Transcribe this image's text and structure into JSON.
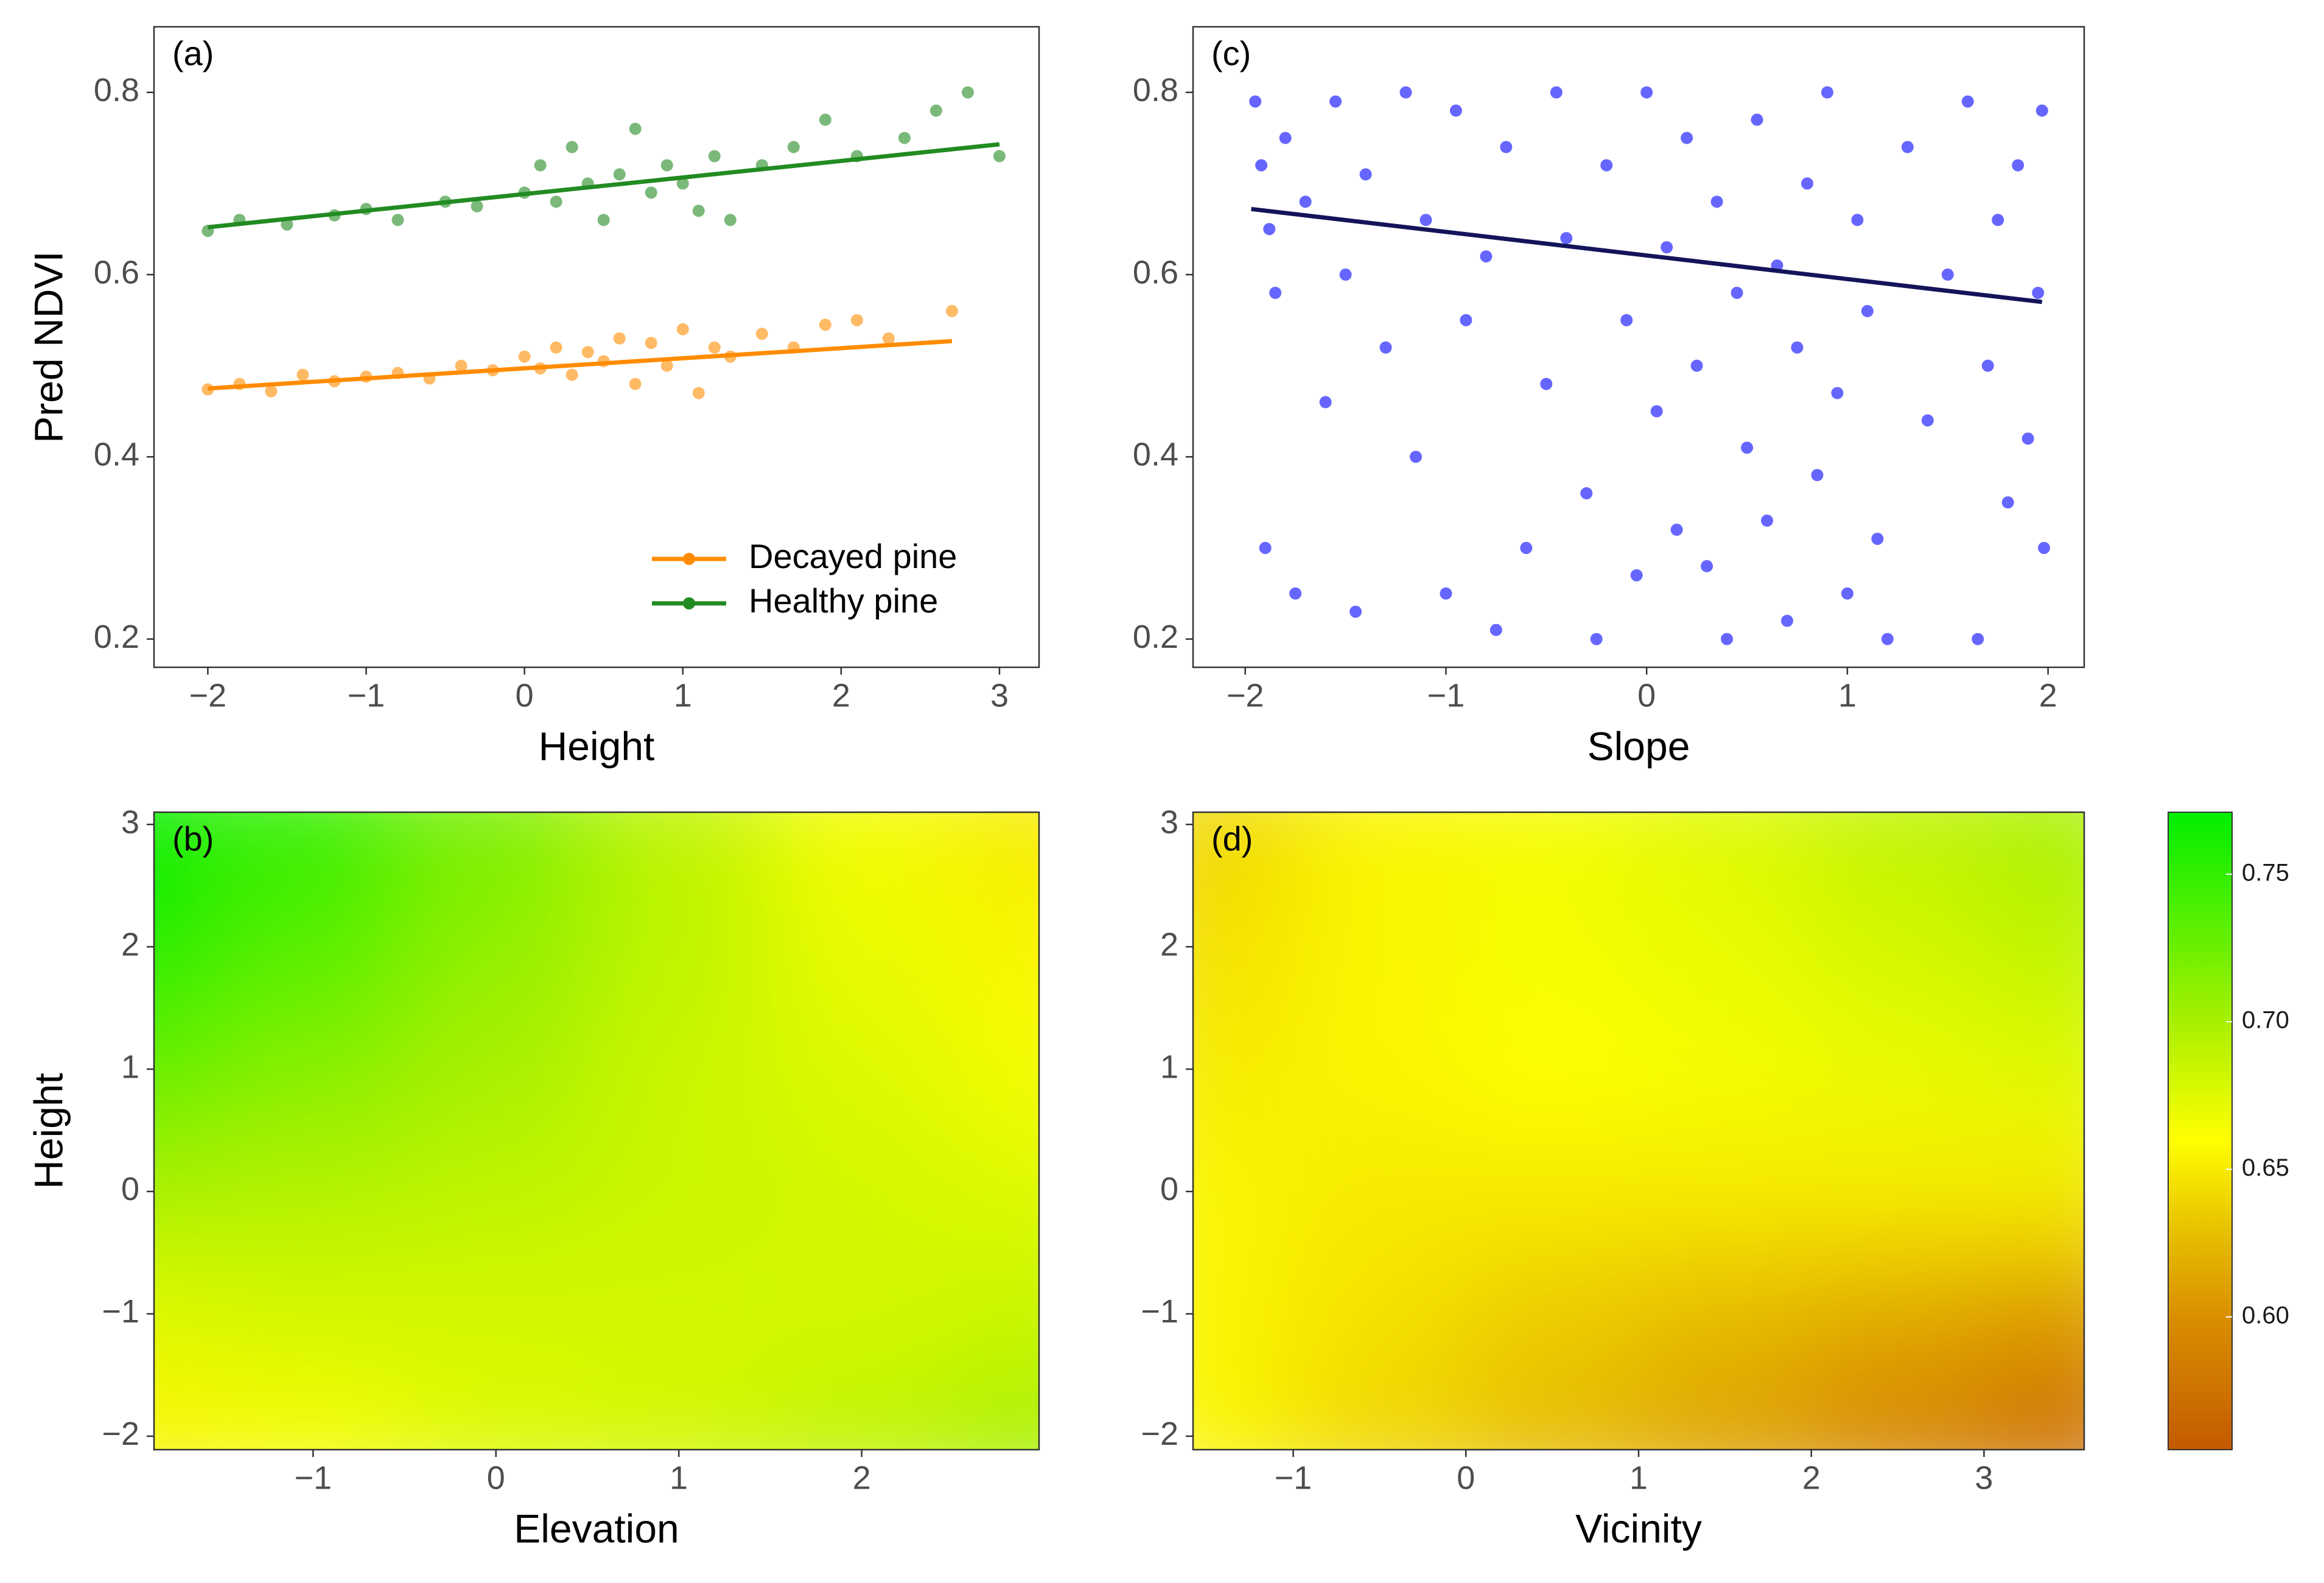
{
  "chart_data": [
    {
      "type": "scatter",
      "panel_label": "(a)",
      "x_label": "Height",
      "y_label": "Pred NDVI",
      "xlim": [
        -2.34,
        3.25
      ],
      "ylim": [
        0.169,
        0.872
      ],
      "xticks": [
        {
          "value": -2,
          "label": "−2"
        },
        {
          "value": -1,
          "label": "−1"
        },
        0,
        1,
        2,
        3
      ],
      "yticks": [
        0.2,
        0.4,
        0.6,
        0.8
      ],
      "legend": "bottom-right",
      "series": [
        {
          "name": "Decayed pine",
          "color": "#ff8c00",
          "x": [
            -2,
            -1.8,
            -1.6,
            -1.4,
            -1.2,
            -1,
            -0.8,
            -0.6,
            -0.4,
            -0.2,
            0,
            0.1,
            0.2,
            0.3,
            0.4,
            0.5,
            0.6,
            0.7,
            0.8,
            0.9,
            1,
            1.1,
            1.2,
            1.3,
            1.5,
            1.7,
            1.9,
            2.1,
            2.3,
            2.7
          ],
          "values": [
            0.474,
            0.48,
            0.472,
            0.49,
            0.483,
            0.488,
            0.492,
            0.486,
            0.5,
            0.495,
            0.51,
            0.497,
            0.52,
            0.49,
            0.515,
            0.505,
            0.53,
            0.48,
            0.525,
            0.5,
            0.54,
            0.47,
            0.52,
            0.51,
            0.535,
            0.52,
            0.545,
            0.55,
            0.53,
            0.56
          ],
          "fit": {
            "x": [
              -2,
              2.7
            ],
            "values": [
              0.475,
              0.527
            ]
          }
        },
        {
          "name": "Healthy pine",
          "color": "#228b22",
          "x": [
            -2,
            -1.8,
            -1.5,
            -1.2,
            -1,
            -0.8,
            -0.5,
            -0.3,
            0,
            0.1,
            0.2,
            0.3,
            0.4,
            0.5,
            0.6,
            0.7,
            0.8,
            0.9,
            1,
            1.1,
            1.2,
            1.3,
            1.5,
            1.7,
            1.9,
            2.1,
            2.4,
            2.6,
            2.8,
            3
          ],
          "values": [
            0.648,
            0.66,
            0.655,
            0.665,
            0.672,
            0.66,
            0.68,
            0.675,
            0.69,
            0.72,
            0.68,
            0.74,
            0.7,
            0.66,
            0.71,
            0.76,
            0.69,
            0.72,
            0.7,
            0.67,
            0.73,
            0.66,
            0.72,
            0.74,
            0.77,
            0.73,
            0.75,
            0.78,
            0.8,
            0.73
          ],
          "fit": {
            "x": [
              -2,
              3
            ],
            "values": [
              0.652,
              0.743
            ]
          }
        }
      ]
    },
    {
      "type": "scatter",
      "panel_label": "(c)",
      "x_label": "Slope",
      "xlim": [
        -2.26,
        2.18
      ],
      "ylim": [
        0.169,
        0.872
      ],
      "xticks": [
        {
          "value": -2,
          "label": "−2"
        },
        {
          "value": -1,
          "label": "−1"
        },
        0,
        1,
        2
      ],
      "yticks": [
        0.2,
        0.4,
        0.6,
        0.8
      ],
      "series": [
        {
          "color": "#0000ff",
          "fit_color": "#14145a",
          "x": [
            -1.95,
            -1.92,
            -1.9,
            -1.88,
            -1.85,
            -1.8,
            -1.75,
            -1.7,
            -1.6,
            -1.55,
            -1.5,
            -1.45,
            -1.4,
            -1.3,
            -1.2,
            -1.15,
            -1.1,
            -1.0,
            -0.95,
            -0.9,
            -0.8,
            -0.75,
            -0.7,
            -0.6,
            -0.5,
            -0.45,
            -0.4,
            -0.3,
            -0.25,
            -0.2,
            -0.1,
            -0.05,
            0,
            0.05,
            0.1,
            0.15,
            0.2,
            0.25,
            0.3,
            0.35,
            0.4,
            0.45,
            0.5,
            0.55,
            0.6,
            0.65,
            0.7,
            0.75,
            0.8,
            0.85,
            0.9,
            0.95,
            1.0,
            1.05,
            1.1,
            1.15,
            1.2,
            1.3,
            1.4,
            1.5,
            1.6,
            1.65,
            1.7,
            1.75,
            1.8,
            1.85,
            1.9,
            1.95,
            1.97,
            1.98
          ],
          "values": [
            0.79,
            0.72,
            0.3,
            0.65,
            0.58,
            0.75,
            0.25,
            0.68,
            0.46,
            0.79,
            0.6,
            0.23,
            0.71,
            0.52,
            0.8,
            0.4,
            0.66,
            0.25,
            0.78,
            0.55,
            0.62,
            0.21,
            0.74,
            0.3,
            0.48,
            0.8,
            0.64,
            0.36,
            0.2,
            0.72,
            0.55,
            0.27,
            0.8,
            0.45,
            0.63,
            0.32,
            0.75,
            0.5,
            0.28,
            0.68,
            0.2,
            0.58,
            0.41,
            0.77,
            0.33,
            0.61,
            0.22,
            0.52,
            0.7,
            0.38,
            0.8,
            0.47,
            0.25,
            0.66,
            0.56,
            0.31,
            0.2,
            0.74,
            0.44,
            0.6,
            0.79,
            0.2,
            0.5,
            0.66,
            0.35,
            0.72,
            0.42,
            0.58,
            0.78,
            0.3
          ],
          "fit": {
            "x": [
              -1.97,
              1.97
            ],
            "values": [
              0.672,
              0.57
            ]
          }
        }
      ]
    },
    {
      "type": "contour",
      "panel_label": "(b)",
      "x_label": "Elevation",
      "y_label": "Height",
      "xlim": [
        -1.87,
        2.97
      ],
      "ylim": [
        -2.11,
        3.1
      ],
      "xticks": [
        {
          "value": -1,
          "label": "−1"
        },
        0,
        1,
        2
      ],
      "yticks": [
        {
          "value": -2,
          "label": "−2"
        },
        {
          "value": -1,
          "label": "−1"
        },
        0,
        1,
        2,
        3
      ],
      "x": [
        -2,
        -1,
        0,
        1,
        2,
        3
      ],
      "y": [
        3,
        2,
        1,
        0,
        -1,
        -2
      ],
      "z": [
        [
          0.77,
          0.75,
          0.72,
          0.69,
          0.665,
          0.65
        ],
        [
          0.76,
          0.735,
          0.71,
          0.69,
          0.67,
          0.655
        ],
        [
          0.73,
          0.715,
          0.7,
          0.685,
          0.675,
          0.665
        ],
        [
          0.7,
          0.695,
          0.69,
          0.685,
          0.68,
          0.675
        ],
        [
          0.675,
          0.68,
          0.68,
          0.68,
          0.68,
          0.685
        ],
        [
          0.655,
          0.665,
          0.675,
          0.68,
          0.69,
          0.7
        ]
      ]
    },
    {
      "type": "contour",
      "panel_label": "(d)",
      "x_label": "Vicinity",
      "xlim": [
        -1.58,
        3.58
      ],
      "ylim": [
        -2.11,
        3.1
      ],
      "xticks": [
        {
          "value": -1,
          "label": "−1"
        },
        0,
        1,
        2,
        3
      ],
      "yticks": [
        {
          "value": -2,
          "label": "−2"
        },
        {
          "value": -1,
          "label": "−1"
        },
        0,
        1,
        2,
        3
      ],
      "x": [
        -1.5,
        -0.5,
        0.5,
        1.5,
        2.5,
        3.5
      ],
      "y": [
        3,
        2,
        1,
        0,
        -1,
        -2
      ],
      "z": [
        [
          0.64,
          0.655,
          0.665,
          0.675,
          0.69,
          0.7
        ],
        [
          0.645,
          0.655,
          0.665,
          0.67,
          0.68,
          0.69
        ],
        [
          0.65,
          0.655,
          0.66,
          0.665,
          0.67,
          0.675
        ],
        [
          0.655,
          0.65,
          0.65,
          0.65,
          0.65,
          0.65
        ],
        [
          0.655,
          0.645,
          0.635,
          0.625,
          0.615,
          0.605
        ],
        [
          0.655,
          0.64,
          0.625,
          0.61,
          0.59,
          0.57
        ]
      ],
      "zlim": [
        0.555,
        0.771
      ],
      "zticks": [
        {
          "value": 0.6,
          "label": "0.60"
        },
        0.65,
        {
          "value": 0.7,
          "label": "0.70"
        },
        0.75
      ],
      "colorscale": [
        [
          0.555,
          "#c45a00"
        ],
        [
          0.6,
          "#d98f00"
        ],
        [
          0.63,
          "#e8c200"
        ],
        [
          0.66,
          "#ffff00"
        ],
        [
          0.7,
          "#a8f000"
        ],
        [
          0.771,
          "#00ee00"
        ]
      ]
    }
  ]
}
